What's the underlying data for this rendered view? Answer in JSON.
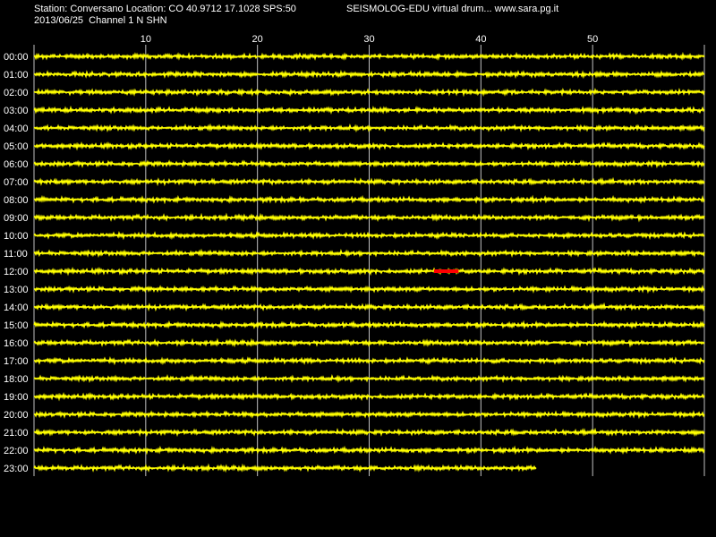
{
  "header": {
    "station_line": "Station: Conversano Location: CO 40.9712 17.1028 SPS:50",
    "date_line": "2013/06/25  Channel 1 N SHN",
    "brand_line": "SEISMOLOG-EDU virtual drum... www.sara.pg.it"
  },
  "chart_data": {
    "type": "line",
    "x_axis": {
      "min": 0,
      "max": 60,
      "ticks": [
        10,
        20,
        30,
        40,
        50
      ],
      "unit": "minutes"
    },
    "hours": [
      "00:00",
      "01:00",
      "02:00",
      "03:00",
      "04:00",
      "05:00",
      "06:00",
      "07:00",
      "08:00",
      "09:00",
      "10:00",
      "11:00",
      "12:00",
      "13:00",
      "14:00",
      "15:00",
      "16:00",
      "17:00",
      "18:00",
      "19:00",
      "20:00",
      "21:00",
      "22:00",
      "23:00"
    ],
    "trace_end_minute": [
      60,
      60,
      60,
      60,
      60,
      60,
      60,
      60,
      60,
      60,
      60,
      60,
      60,
      60,
      60,
      60,
      60,
      60,
      60,
      60,
      60,
      60,
      60,
      45
    ],
    "highlights": [
      {
        "hour": "12:00",
        "start_minute": 35.8,
        "end_minute": 38.0
      }
    ],
    "grid": true,
    "colors": {
      "trace": "#ffff00",
      "highlight": "#ff0000",
      "grid": "#c0c0c0",
      "background": "#000000",
      "text": "#ffffff"
    }
  }
}
